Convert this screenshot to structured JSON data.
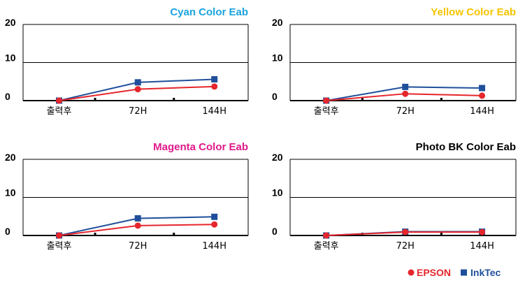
{
  "colors": {
    "epson": "#e5262c",
    "inktec": "#1f4f9a",
    "cyan_title": "#1aa3dd",
    "yellow_title": "#f5c400",
    "magenta_title": "#e0198a",
    "black_title": "#000000"
  },
  "legend": {
    "epson": "EPSON",
    "inktec": "InkTec",
    "epson_marker": "circle",
    "inktec_marker": "square"
  },
  "chart_data": [
    {
      "type": "line",
      "title": "Cyan Color Eab",
      "title_color": "#1aa3dd",
      "categories": [
        "출력후",
        "72H",
        "144H"
      ],
      "ylim": [
        0,
        20
      ],
      "yticks": [
        "0",
        "10",
        "20"
      ],
      "grid": "horizontal at 10",
      "series": [
        {
          "name": "EPSON",
          "values": [
            0,
            3,
            3.7
          ]
        },
        {
          "name": "InkTec",
          "values": [
            0,
            4.8,
            5.6
          ]
        }
      ]
    },
    {
      "type": "line",
      "title": "Yellow Color Eab",
      "title_color": "#f5c400",
      "categories": [
        "출력후",
        "72H",
        "144H"
      ],
      "ylim": [
        0,
        20
      ],
      "yticks": [
        "0",
        "10",
        "20"
      ],
      "grid": "horizontal at 10",
      "series": [
        {
          "name": "EPSON",
          "values": [
            0,
            1.8,
            1.3
          ]
        },
        {
          "name": "InkTec",
          "values": [
            0,
            3.6,
            3.3
          ]
        }
      ]
    },
    {
      "type": "line",
      "title": "Magenta Color Eab",
      "title_color": "#e0198a",
      "categories": [
        "출력후",
        "72H",
        "144H"
      ],
      "ylim": [
        0,
        20
      ],
      "yticks": [
        "0",
        "10",
        "20"
      ],
      "grid": "horizontal at 10",
      "series": [
        {
          "name": "EPSON",
          "values": [
            0,
            2.6,
            2.9
          ]
        },
        {
          "name": "InkTec",
          "values": [
            0,
            4.5,
            4.9
          ]
        }
      ]
    },
    {
      "type": "line",
      "title": "Photo BK Color Eab",
      "title_color": "#000000",
      "categories": [
        "출력후",
        "72H",
        "144H"
      ],
      "ylim": [
        0,
        20
      ],
      "yticks": [
        "0",
        "10",
        "20"
      ],
      "grid": "horizontal at 10",
      "series": [
        {
          "name": "EPSON",
          "values": [
            0,
            0.9,
            0.9
          ]
        },
        {
          "name": "InkTec",
          "values": [
            0,
            1.0,
            1.0
          ]
        }
      ]
    }
  ]
}
